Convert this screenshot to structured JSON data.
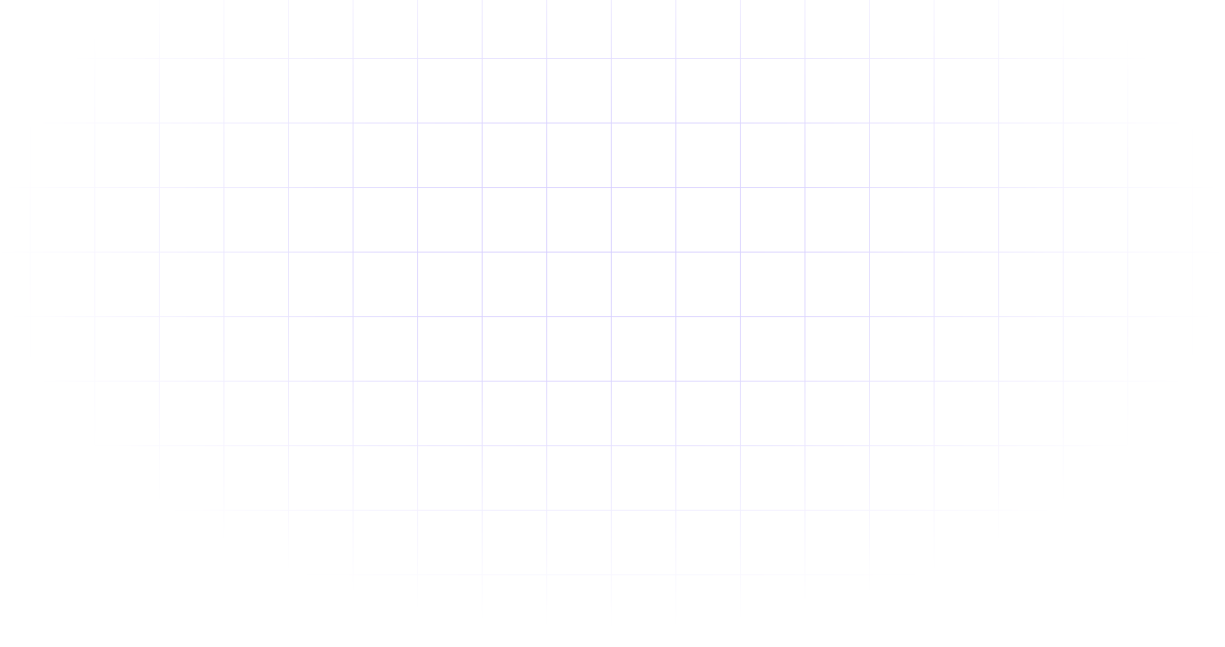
{
  "background": {
    "pattern": "grid",
    "grid_color": "#d4ccff",
    "base_color": "#ffffff",
    "fade": "radial"
  }
}
